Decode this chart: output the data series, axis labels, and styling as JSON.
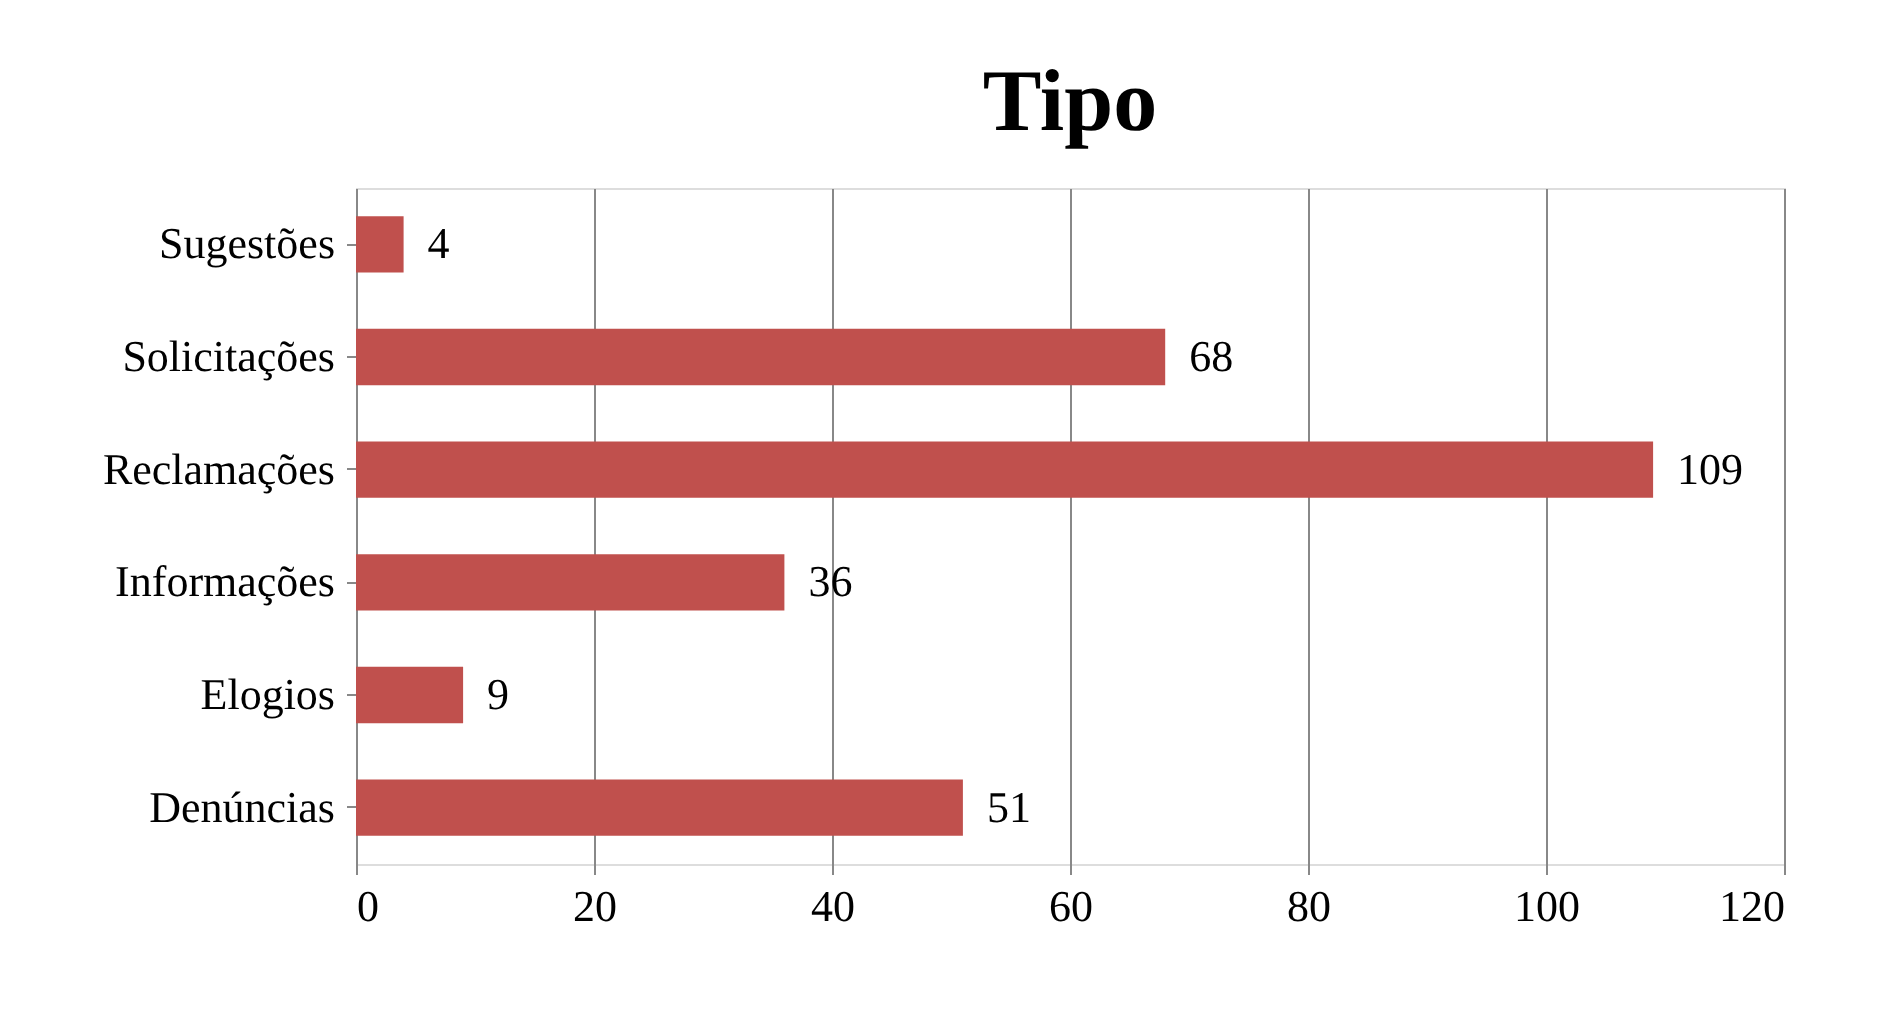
{
  "chart_data": {
    "type": "bar",
    "title": "Tipo",
    "orientation": "horizontal",
    "categories": [
      "Sugestões",
      "Solicitações",
      "Reclamações",
      "Informações",
      "Elogios",
      "Denúncias"
    ],
    "values": [
      4,
      68,
      109,
      36,
      9,
      51
    ],
    "color": "#c0504d",
    "xlim": [
      0,
      120
    ],
    "xticks": [
      0,
      20,
      40,
      60,
      80,
      100,
      120
    ],
    "grid": "x",
    "data_labels": true
  }
}
